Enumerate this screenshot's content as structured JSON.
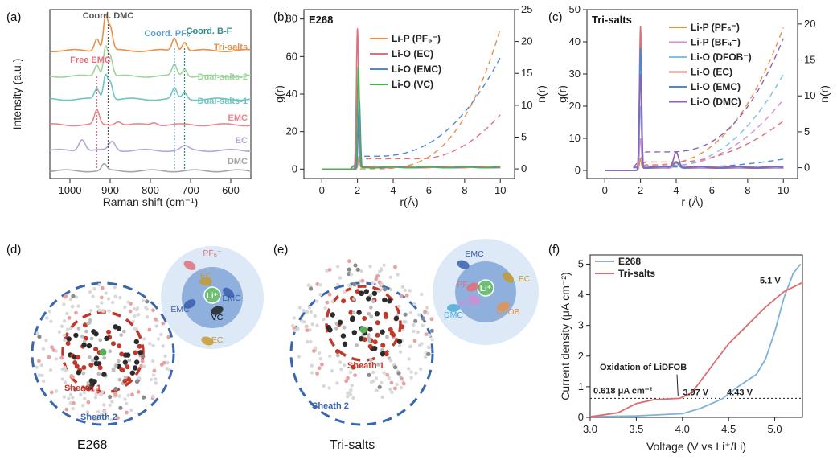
{
  "panels": {
    "a": {
      "letter": "(a)"
    },
    "b": {
      "letter": "(b)",
      "tag": "E268"
    },
    "c": {
      "letter": "(c)",
      "tag": "Tri-salts"
    },
    "d": {
      "letter": "(d)",
      "caption": "E268"
    },
    "e": {
      "letter": "(e)",
      "caption": "Tri-salts"
    },
    "f": {
      "letter": "(f)"
    }
  },
  "cartoons": {
    "d": {
      "sheath1": "Sheath 1",
      "sheath2": "Sheath 2",
      "center": "Li⁺",
      "molecules": [
        {
          "label": "PF₆⁻",
          "color": "#e0707a"
        },
        {
          "label": "EC",
          "color": "#c79a2e"
        },
        {
          "label": "EMC",
          "color": "#3a5fad"
        },
        {
          "label": "EMC",
          "color": "#3a5fad"
        },
        {
          "label": "VC",
          "color": "#222222"
        },
        {
          "label": "EC",
          "color": "#c79a2e"
        }
      ]
    },
    "e": {
      "sheath1": "Sheath 1",
      "sheath2": "Sheath 2",
      "center": "Li⁺",
      "molecules": [
        {
          "label": "EMC",
          "color": "#3a5fad"
        },
        {
          "label": "PF₆⁻",
          "color": "#e0707a"
        },
        {
          "label": "EC",
          "color": "#c79a2e"
        },
        {
          "label": "BF₄⁻",
          "color": "#d58bd5"
        },
        {
          "label": "DFOB",
          "color": "#e8904a"
        },
        {
          "label": "DMC",
          "color": "#4aaad8"
        }
      ]
    }
  },
  "chart_data": [
    {
      "id": "a",
      "type": "line",
      "title": "",
      "xlabel": "Raman shift (cm⁻¹)",
      "ylabel": "Intensity (a.u.)",
      "xlim": [
        1050,
        550
      ],
      "xticks": [
        1000,
        900,
        800,
        700,
        600
      ],
      "series": [
        {
          "name": "Tri-salts",
          "color": "#e8904a",
          "baseline": 5.0,
          "peaks": [
            [
              933,
              0.5,
              6
            ],
            [
              912,
              1.3,
              5
            ],
            [
              900,
              0.9,
              6
            ],
            [
              740,
              0.5,
              6
            ],
            [
              715,
              0.35,
              6
            ]
          ]
        },
        {
          "name": "Dual-salts-2",
          "color": "#9dd49a",
          "baseline": 4.0,
          "peaks": [
            [
              933,
              0.45,
              6
            ],
            [
              912,
              1.1,
              5
            ],
            [
              900,
              0.8,
              6
            ],
            [
              740,
              0.45,
              6
            ],
            [
              715,
              0.3,
              6
            ]
          ]
        },
        {
          "name": "Dual-salts-1",
          "color": "#6cc6c6",
          "baseline": 3.1,
          "peaks": [
            [
              933,
              0.4,
              6
            ],
            [
              912,
              0.9,
              5
            ],
            [
              900,
              0.7,
              6
            ],
            [
              740,
              0.4,
              6
            ],
            [
              715,
              0.25,
              6
            ]
          ]
        },
        {
          "name": "EMC",
          "color": "#e8868c",
          "baseline": 2.1,
          "peaks": [
            [
              933,
              0.55,
              6
            ],
            [
              880,
              0.15,
              8
            ],
            [
              790,
              0.1,
              8
            ]
          ]
        },
        {
          "name": "EC",
          "color": "#b7a6d9",
          "baseline": 1.1,
          "peaks": [
            [
              970,
              0.45,
              8
            ],
            [
              895,
              0.35,
              8
            ],
            [
              715,
              0.15,
              10
            ]
          ]
        },
        {
          "name": "DMC",
          "color": "#a6a6a6",
          "baseline": 0.3,
          "peaks": [
            [
              915,
              0.25,
              6
            ]
          ]
        }
      ],
      "annotations": [
        {
          "text": "Coord. DMC",
          "x": 905,
          "color": "#555555"
        },
        {
          "text": "Free EMC",
          "x": 933,
          "color": "#e0707a"
        },
        {
          "text": "Coord. PF₆⁻",
          "x": 740,
          "color": "#5f9fd0"
        },
        {
          "text": "Coord. B-F",
          "x": 715,
          "color": "#2e8c8c"
        }
      ]
    },
    {
      "id": "b",
      "type": "line",
      "xlabel": "r(Å)",
      "ylabel": "g(r)",
      "y2label": "n(r)",
      "xlim": [
        -1,
        10.8
      ],
      "xticks": [
        0,
        2,
        4,
        6,
        8,
        10
      ],
      "ylim": [
        -5,
        85
      ],
      "yticks": [
        0,
        20,
        40,
        60,
        80
      ],
      "y2lim": [
        -1.5,
        25
      ],
      "y2ticks": [
        0,
        5,
        10,
        15,
        20,
        25
      ],
      "series": [
        {
          "name": "Li-P (PF₆⁻)",
          "color": "#e8904a",
          "g_peak": [
            2.1,
            7
          ],
          "n_curve": {
            "plateau": 0,
            "r0": 2.5,
            "nEnd": 22,
            "pow": 3.2
          }
        },
        {
          "name": "Li-O (EC)",
          "color": "#e0707a",
          "g_peak": [
            2.0,
            75
          ],
          "n_curve": {
            "plateau": 1.6,
            "r0": 5.5,
            "nEnd": 8.5,
            "pow": 2.0
          }
        },
        {
          "name": "Li-O (EMC)",
          "color": "#4a8ad0",
          "g_peak": [
            2.1,
            37
          ],
          "n_curve": {
            "plateau": 2.0,
            "r0": 3.0,
            "nEnd": 17.5,
            "pow": 2.4
          }
        },
        {
          "name": "Li-O (VC)",
          "color": "#4caf50",
          "g_peak": [
            2.05,
            55
          ],
          "n_curve": null
        }
      ]
    },
    {
      "id": "c",
      "type": "line",
      "xlabel": "r (Å)",
      "ylabel": "g(r)",
      "y2label": "n(r)",
      "xlim": [
        -1,
        10.8
      ],
      "xticks": [
        0,
        2,
        4,
        6,
        8,
        10
      ],
      "ylim": [
        -2.5,
        50
      ],
      "yticks": [
        0,
        10,
        20,
        30,
        40,
        50
      ],
      "y2lim": [
        -1.5,
        22
      ],
      "y2ticks": [
        0,
        5,
        10,
        15,
        20
      ],
      "series": [
        {
          "name": "Li-P (PF₆⁻)",
          "color": "#e8904a",
          "g_peak": [
            2.0,
            3.5
          ],
          "n_curve": {
            "plateau": 0.4,
            "r0": 2.5,
            "nEnd": 19.5,
            "pow": 2.6
          }
        },
        {
          "name": "Li-P (BF₄⁻)",
          "color": "#d58bd5",
          "g_peak": [
            2.0,
            10
          ],
          "n_curve": {
            "plateau": 0.3,
            "r0": 3.5,
            "nEnd": 9.5,
            "pow": 2.2
          }
        },
        {
          "name": "Li-O (DFOB⁻)",
          "color": "#7dc1e8",
          "g_peak": [
            2.0,
            20
          ],
          "n_curve": {
            "plateau": 0.1,
            "r0": 3.0,
            "nEnd": 13,
            "pow": 2.4
          }
        },
        {
          "name": "Li-O (EC)",
          "color": "#e0707a",
          "g_peak": [
            2.0,
            45
          ],
          "n_curve": {
            "plateau": 0.8,
            "r0": 4.0,
            "nEnd": 6.5,
            "pow": 2.0
          }
        },
        {
          "name": "Li-O (EMC)",
          "color": "#4a8ad0",
          "g_peak": [
            2.0,
            38
          ],
          "n_curve": {
            "plateau": 0.1,
            "r0": 5.0,
            "nEnd": 1.2,
            "pow": 1.8
          }
        },
        {
          "name": "Li-O (DMC)",
          "color": "#8a63b5",
          "g_peak": [
            2.0,
            30
          ],
          "n_curve": {
            "plateau": 2.2,
            "r0": 3.5,
            "nEnd": 18,
            "pow": 2.5
          }
        }
      ]
    },
    {
      "id": "f",
      "type": "line",
      "xlabel": "Voltage (V vs Li⁺/Li)",
      "ylabel": "Current density (μA cm⁻²)",
      "xlim": [
        3.0,
        5.3
      ],
      "xticks": [
        3.0,
        3.5,
        4.0,
        4.5,
        5.0
      ],
      "ylim": [
        0,
        5.3
      ],
      "yticks": [
        0,
        1,
        2,
        3,
        4,
        5
      ],
      "series": [
        {
          "name": "E268",
          "color": "#7fb2d8",
          "points": [
            [
              3.0,
              0.02
            ],
            [
              3.5,
              0.05
            ],
            [
              4.0,
              0.12
            ],
            [
              4.2,
              0.3
            ],
            [
              4.43,
              0.6
            ],
            [
              4.6,
              1.0
            ],
            [
              4.8,
              1.4
            ],
            [
              4.9,
              1.9
            ],
            [
              5.0,
              2.8
            ],
            [
              5.1,
              3.9
            ],
            [
              5.2,
              4.7
            ],
            [
              5.28,
              5.0
            ]
          ]
        },
        {
          "name": "Tri-salts",
          "color": "#e06b6f",
          "points": [
            [
              3.0,
              0.02
            ],
            [
              3.3,
              0.15
            ],
            [
              3.5,
              0.45
            ],
            [
              3.7,
              0.58
            ],
            [
              3.97,
              0.618
            ],
            [
              4.1,
              0.8
            ],
            [
              4.3,
              1.6
            ],
            [
              4.5,
              2.4
            ],
            [
              4.7,
              3.0
            ],
            [
              4.9,
              3.6
            ],
            [
              5.1,
              4.1
            ],
            [
              5.3,
              4.4
            ]
          ]
        }
      ],
      "hline": {
        "y": 0.618,
        "label": "0.618 μA cm⁻²"
      },
      "annotations": [
        {
          "text": "Oxidation of LiDFOB",
          "x": 3.97,
          "y": 0.618
        },
        {
          "text": "3.97 V",
          "x": 3.97,
          "y": 0.618
        },
        {
          "text": "4.43 V",
          "x": 4.43,
          "y": 0.618
        },
        {
          "text": "5.1 V",
          "x": 5.1,
          "y": 4.1
        }
      ]
    }
  ]
}
